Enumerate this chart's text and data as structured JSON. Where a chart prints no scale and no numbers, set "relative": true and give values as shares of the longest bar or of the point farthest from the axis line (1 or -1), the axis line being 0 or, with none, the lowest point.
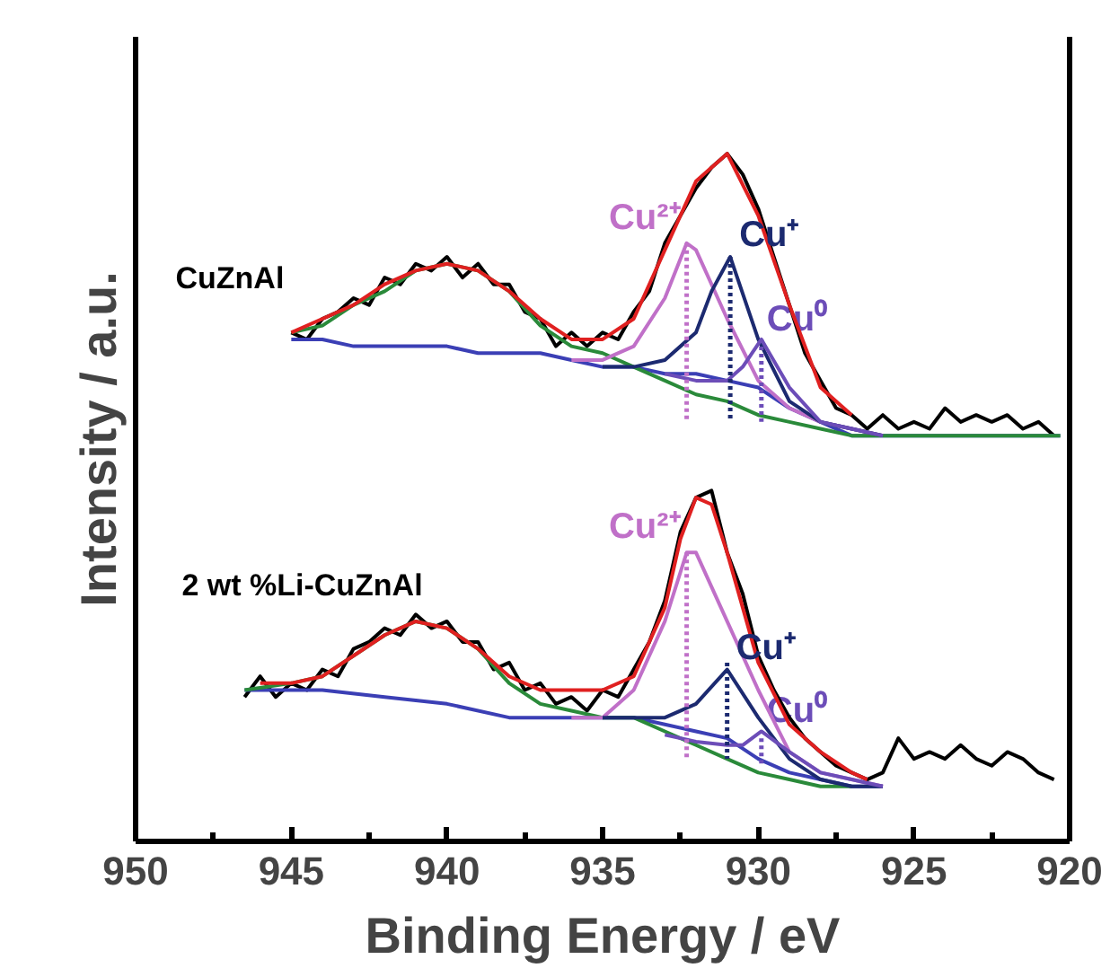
{
  "chart_data": {
    "type": "line",
    "relative": true,
    "xlabel": "Binding Energy / eV",
    "ylabel": "Intensity / a.u.",
    "xlim": [
      950,
      920
    ],
    "xticks": [
      950,
      {
        "value": 947.5,
        "label": null
      },
      945,
      {
        "value": 942.5,
        "label": null
      },
      940,
      {
        "value": 937.5,
        "label": null
      },
      935,
      {
        "value": 932.5,
        "label": null
      },
      930,
      {
        "value": 927.5,
        "label": null
      },
      925,
      {
        "value": 922.5,
        "label": null
      },
      920
    ],
    "grid": false,
    "line_style": "solid",
    "series": [
      {
        "name": "CuZnAl",
        "color": "#000000",
        "x": [
          945,
          944.5,
          944,
          943.5,
          943,
          942.5,
          942,
          941.5,
          941,
          940.5,
          940,
          939.5,
          939,
          938.5,
          938,
          937.5,
          937,
          936.5,
          936,
          935.5,
          935,
          934.5,
          934,
          933.5,
          933,
          932.5,
          932,
          931.5,
          931,
          930.5,
          930,
          929.5,
          929,
          928.5,
          928,
          927.5,
          927,
          926.5,
          926,
          925.5,
          925,
          924.5,
          924,
          923.5,
          923,
          922.5,
          922,
          921.5,
          921,
          920.5
        ],
        "values": [
          0.74,
          0.73,
          0.76,
          0.77,
          0.79,
          0.78,
          0.82,
          0.81,
          0.84,
          0.83,
          0.85,
          0.82,
          0.84,
          0.81,
          0.81,
          0.77,
          0.76,
          0.72,
          0.74,
          0.72,
          0.74,
          0.73,
          0.77,
          0.8,
          0.87,
          0.91,
          0.95,
          0.98,
          1.0,
          0.97,
          0.92,
          0.85,
          0.78,
          0.71,
          0.67,
          0.63,
          0.62,
          0.6,
          0.62,
          0.6,
          0.61,
          0.6,
          0.63,
          0.61,
          0.62,
          0.61,
          0.62,
          0.6,
          0.61,
          0.59
        ]
      },
      {
        "color": "#3b3fb5",
        "x": [
          945,
          944,
          943,
          942,
          941,
          940,
          939,
          938,
          937,
          936,
          935,
          934,
          933,
          932,
          931,
          930,
          929,
          928,
          927,
          926,
          925,
          920.3
        ],
        "values": [
          0.73,
          0.73,
          0.72,
          0.72,
          0.72,
          0.72,
          0.71,
          0.71,
          0.71,
          0.7,
          0.69,
          0.69,
          0.68,
          0.68,
          0.67,
          0.66,
          0.63,
          0.61,
          0.59,
          0.59,
          0.59,
          0.59
        ]
      },
      {
        "color": "#2a8a3a",
        "x": [
          945,
          944,
          943,
          942,
          941,
          940,
          939,
          938,
          937,
          936,
          935,
          934,
          933,
          932,
          931,
          930,
          929,
          928,
          927,
          925,
          920.3
        ],
        "values": [
          0.74,
          0.75,
          0.78,
          0.8,
          0.83,
          0.84,
          0.83,
          0.8,
          0.75,
          0.72,
          0.71,
          0.69,
          0.67,
          0.65,
          0.64,
          0.62,
          0.61,
          0.6,
          0.59,
          0.59,
          0.59
        ]
      },
      {
        "name": "Cu²⁺",
        "color": "#c070c8",
        "x": [
          936,
          935,
          934,
          933,
          932.3,
          932,
          931,
          930,
          929,
          928,
          927,
          926
        ],
        "values": [
          0.7,
          0.7,
          0.72,
          0.79,
          0.87,
          0.86,
          0.76,
          0.67,
          0.63,
          0.61,
          0.6,
          0.59
        ]
      },
      {
        "name": "Cu⁺",
        "color": "#1c2a70",
        "x": [
          935,
          934,
          933,
          932,
          931.5,
          930.9,
          930,
          929,
          928,
          927,
          926
        ],
        "values": [
          0.69,
          0.69,
          0.7,
          0.74,
          0.8,
          0.85,
          0.73,
          0.64,
          0.61,
          0.6,
          0.59
        ]
      },
      {
        "name": "Cu⁰",
        "color": "#6c4db8",
        "x": [
          933,
          932,
          931,
          930.5,
          929.9,
          929,
          928,
          927,
          926
        ],
        "values": [
          0.68,
          0.67,
          0.67,
          0.69,
          0.73,
          0.66,
          0.61,
          0.6,
          0.59
        ]
      },
      {
        "color": "#e02020",
        "x": [
          945,
          944,
          943,
          942,
          941,
          940,
          939,
          938,
          937,
          936,
          935,
          934,
          933,
          932,
          931,
          930,
          929,
          928,
          927
        ],
        "values": [
          0.74,
          0.76,
          0.78,
          0.81,
          0.83,
          0.84,
          0.83,
          0.8,
          0.76,
          0.73,
          0.73,
          0.76,
          0.86,
          0.96,
          1.0,
          0.91,
          0.78,
          0.66,
          0.62
        ]
      },
      {
        "color": "#c070c8",
        "line_style": "dotted",
        "x": [
          932.3,
          932.3
        ],
        "values": [
          0.87,
          0.61
        ]
      },
      {
        "color": "#1c2a70",
        "line_style": "dotted",
        "x": [
          930.9,
          930.9
        ],
        "values": [
          0.85,
          0.61
        ]
      },
      {
        "color": "#6c4db8",
        "line_style": "dotted",
        "x": [
          929.9,
          929.9
        ],
        "values": [
          0.73,
          0.61
        ]
      },
      {
        "name": "2 wt %Li-CuZnAl",
        "color": "#000000",
        "x": [
          946.5,
          946,
          945.5,
          945,
          944.5,
          944,
          943.5,
          943,
          942.5,
          942,
          941.5,
          941,
          940.5,
          940,
          939.5,
          939,
          938.5,
          938,
          937.5,
          937,
          936.5,
          936,
          935.5,
          935,
          934.5,
          934,
          933.5,
          933,
          932.5,
          932,
          931.5,
          931,
          930.5,
          930,
          929.5,
          929,
          928.5,
          928,
          927.5,
          927,
          926.5,
          926,
          925.5,
          925,
          924.5,
          924,
          923.5,
          923,
          922.5,
          922,
          921.5,
          921,
          920.5
        ],
        "values": [
          0.21,
          0.24,
          0.21,
          0.23,
          0.22,
          0.25,
          0.24,
          0.28,
          0.29,
          0.31,
          0.3,
          0.33,
          0.31,
          0.32,
          0.29,
          0.29,
          0.25,
          0.26,
          0.22,
          0.23,
          0.2,
          0.21,
          0.19,
          0.22,
          0.21,
          0.25,
          0.29,
          0.35,
          0.45,
          0.5,
          0.51,
          0.42,
          0.36,
          0.27,
          0.22,
          0.18,
          0.15,
          0.13,
          0.11,
          0.1,
          0.09,
          0.1,
          0.15,
          0.12,
          0.13,
          0.12,
          0.14,
          0.12,
          0.11,
          0.13,
          0.12,
          0.1,
          0.09
        ]
      },
      {
        "color": "#3b3fb5",
        "x": [
          946.5,
          944,
          942,
          940,
          938,
          936,
          934,
          933,
          932,
          931,
          930,
          929,
          928,
          927,
          926
        ],
        "values": [
          0.22,
          0.22,
          0.21,
          0.2,
          0.18,
          0.18,
          0.18,
          0.17,
          0.16,
          0.15,
          0.12,
          0.1,
          0.09,
          0.08,
          0.08
        ]
      },
      {
        "color": "#2a8a3a",
        "x": [
          946.5,
          945,
          944,
          943,
          942,
          941,
          940,
          939,
          938,
          937,
          936,
          935,
          934,
          933,
          932,
          931,
          930,
          929,
          928,
          927
        ],
        "values": [
          0.22,
          0.23,
          0.24,
          0.27,
          0.3,
          0.32,
          0.31,
          0.28,
          0.23,
          0.2,
          0.19,
          0.18,
          0.18,
          0.16,
          0.14,
          0.12,
          0.1,
          0.09,
          0.08,
          0.08
        ]
      },
      {
        "name": "Cu²⁺",
        "color": "#c070c8",
        "x": [
          936,
          935,
          934,
          933,
          932.3,
          932,
          931,
          930,
          929,
          928,
          927,
          926
        ],
        "values": [
          0.18,
          0.18,
          0.22,
          0.32,
          0.42,
          0.42,
          0.32,
          0.22,
          0.13,
          0.1,
          0.09,
          0.08
        ]
      },
      {
        "name": "Cu⁺",
        "color": "#1c2a70",
        "x": [
          935,
          934,
          933,
          932,
          931,
          930,
          929,
          928,
          927,
          926
        ],
        "values": [
          0.18,
          0.18,
          0.18,
          0.2,
          0.25,
          0.18,
          0.12,
          0.09,
          0.08,
          0.08
        ]
      },
      {
        "name": "Cu⁰",
        "color": "#6c4db8",
        "x": [
          933,
          932,
          931,
          930.5,
          929.9,
          929,
          928,
          927,
          926
        ],
        "values": [
          0.155,
          0.145,
          0.14,
          0.14,
          0.16,
          0.13,
          0.1,
          0.09,
          0.08
        ]
      },
      {
        "color": "#e02020",
        "x": [
          946,
          945,
          944,
          943,
          942,
          941,
          940,
          939,
          938,
          937,
          936,
          935,
          934,
          933,
          932.5,
          932,
          931.5,
          931,
          930,
          929,
          928,
          927,
          926.5
        ],
        "values": [
          0.23,
          0.23,
          0.24,
          0.27,
          0.3,
          0.32,
          0.31,
          0.28,
          0.24,
          0.22,
          0.22,
          0.22,
          0.24,
          0.34,
          0.44,
          0.5,
          0.49,
          0.42,
          0.26,
          0.17,
          0.13,
          0.1,
          0.09
        ]
      },
      {
        "color": "#c070c8",
        "line_style": "dotted",
        "x": [
          932.3,
          932.3
        ],
        "values": [
          0.42,
          0.12
        ]
      },
      {
        "color": "#1c2a70",
        "line_style": "dotted",
        "x": [
          931.0,
          931.0
        ],
        "values": [
          0.26,
          0.12
        ]
      },
      {
        "color": "#6c4db8",
        "line_style": "dotted",
        "x": [
          929.9,
          929.9
        ],
        "values": [
          0.15,
          0.11
        ]
      }
    ]
  }
}
